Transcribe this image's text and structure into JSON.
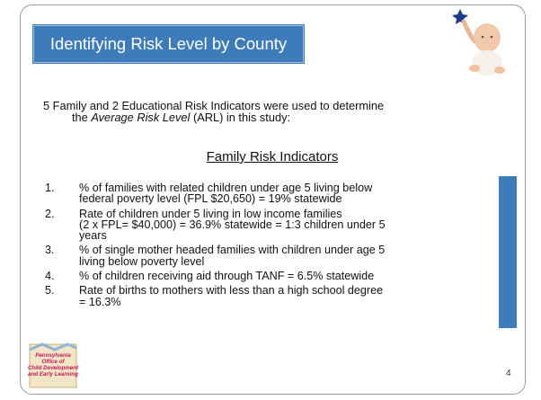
{
  "slide": {
    "title": "Identifying Risk Level by County",
    "intro": {
      "lines": [
        [
          {
            "text": "5 Family and 2 Educational Risk Indicators were used to determine",
            "italic": false
          }
        ],
        [
          {
            "text": "the ",
            "italic": false
          },
          {
            "text": "Average Risk Level",
            "italic": true
          },
          {
            "text": " (ARL) in this study:",
            "italic": false
          }
        ]
      ]
    },
    "heading": "Family Risk Indicators",
    "items": [
      {
        "number": "1.",
        "lines": [
          "% of families with related children under age 5 living below",
          "federal poverty level (FPL $20,650) = 19% statewide"
        ]
      },
      {
        "number": "2.",
        "lines": [
          "Rate of children under 5 living in low income families",
          "(2 x FPL= $40,000) = 36.9% statewide = 1:3 children under 5",
          "years"
        ]
      },
      {
        "number": "3.",
        "lines": [
          "% of single mother headed families with children under age 5",
          "living below poverty level"
        ]
      },
      {
        "number": "4.",
        "lines": [
          "% of children receiving aid through TANF = 6.5% statewide"
        ]
      },
      {
        "number": "5.",
        "lines": [
          "Rate of births to mothers with less than a high school degree",
          "= 16.3%"
        ]
      }
    ],
    "logo": {
      "lines": [
        "Pennsylvania",
        "Office of",
        "Child Development",
        "and Early Learning"
      ]
    },
    "page_number": "4"
  }
}
